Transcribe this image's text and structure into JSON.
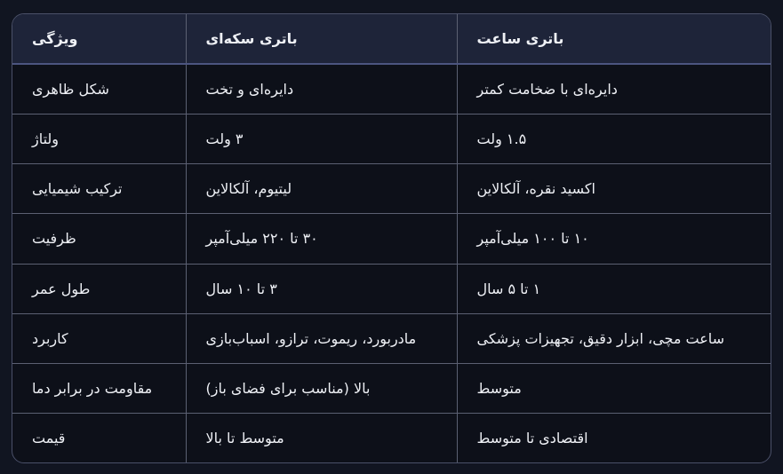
{
  "table": {
    "headers": [
      "ویژگی",
      "باتری سکه‌ای",
      "باتری ساعت"
    ],
    "rows": [
      [
        "شکل ظاهری",
        "دایره‌ای و تخت",
        "دایره‌ای با ضخامت کمتر"
      ],
      [
        "ولتاژ",
        "۳ ولت",
        "۱.۵ ولت"
      ],
      [
        "ترکیب شیمیایی",
        "لیتیوم، آلکالاین",
        "اکسید نقره، آلکالاین"
      ],
      [
        "ظرفیت",
        "۳۰ تا ۲۲۰ میلی‌آمپر",
        "۱۰ تا ۱۰۰ میلی‌آمپر"
      ],
      [
        "طول عمر",
        "۳ تا ۱۰ سال",
        "۱ تا ۵ سال"
      ],
      [
        "کاربرد",
        "مادربورد، ریموت، ترازو، اسباب‌بازی",
        "ساعت مچی، ابزار دقیق، تجهیزات پزشکی"
      ],
      [
        "مقاومت در برابر دما",
        "بالا (مناسب برای فضای باز)",
        "متوسط"
      ],
      [
        "قیمت",
        "متوسط تا بالا",
        "اقتصادی تا متوسط"
      ]
    ]
  }
}
